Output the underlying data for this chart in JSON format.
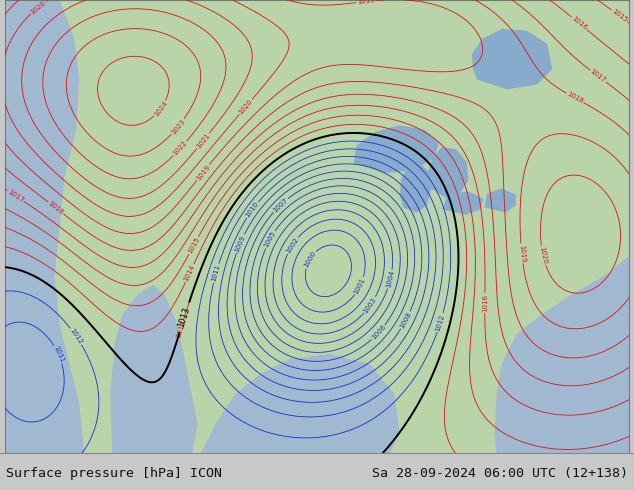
{
  "title_left": "Surface pressure [hPa] ICON",
  "title_right": "Sa 28-09-2024 06:00 UTC (12+138)",
  "figsize": [
    6.34,
    4.9
  ],
  "dpi": 100,
  "font_color": "#111111",
  "font_size": 9.5,
  "land_color": "#b8d4a8",
  "ocean_color": "#a0b8d0",
  "lake_color": "#88aacc",
  "bg_gray": "#c8c8c8"
}
